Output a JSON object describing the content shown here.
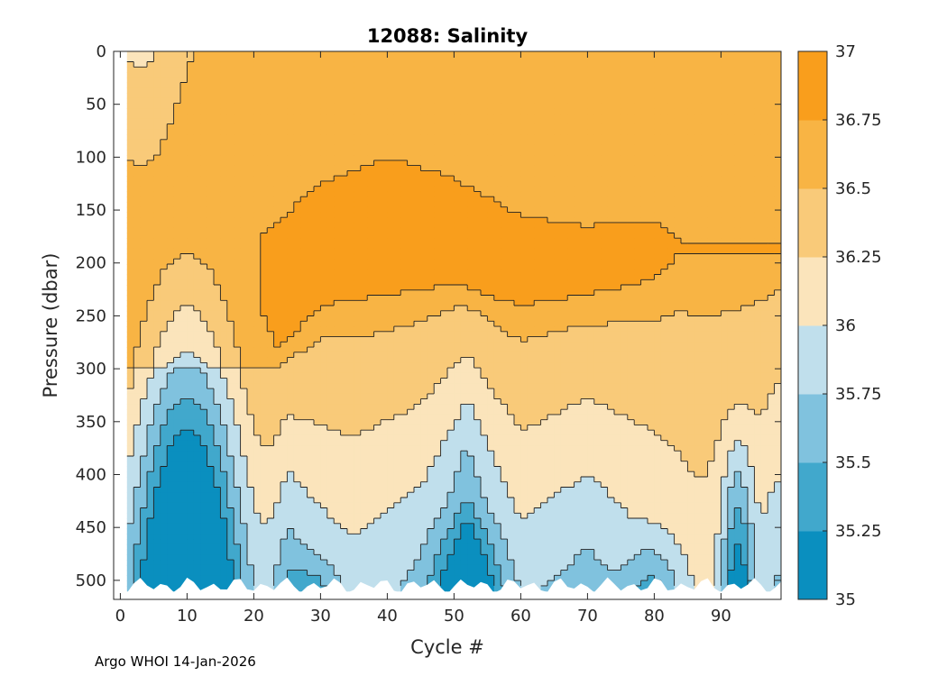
{
  "chart_data": {
    "type": "contourf",
    "title": "12088:  Salinity",
    "xlabel": "Cycle #",
    "ylabel": "Pressure (dbar)",
    "xlim": [
      -1,
      99
    ],
    "ylim": [
      0,
      518
    ],
    "y_reversed": true,
    "x_ticks": [
      0,
      10,
      20,
      30,
      40,
      50,
      60,
      70,
      80,
      90
    ],
    "y_ticks": [
      0,
      50,
      100,
      150,
      200,
      250,
      300,
      350,
      400,
      450,
      500
    ],
    "colorbar": {
      "levels": [
        35,
        35.25,
        35.5,
        35.75,
        36,
        36.25,
        36.5,
        36.75,
        37
      ],
      "tick_labels": [
        "35",
        "35.25",
        "35.5",
        "35.75",
        "36",
        "36.25",
        "36.5",
        "36.75",
        "37"
      ],
      "colors": [
        "#0a8fbf",
        "#41a8cc",
        "#80c2de",
        "#c0dfec",
        "#fbe4bb",
        "#f9ca79",
        "#f8b444",
        "#f99e1c"
      ]
    },
    "series": [
      {
        "name": "core_36.75_top",
        "x": [
          21,
          30,
          40,
          50,
          60,
          70,
          80,
          84
        ],
        "values": [
          175,
          125,
          100,
          120,
          155,
          165,
          160,
          180
        ]
      },
      {
        "name": "core_36.75_bottom",
        "x": [
          21,
          30,
          40,
          50,
          60,
          70,
          80,
          84
        ],
        "values": [
          300,
          240,
          230,
          220,
          240,
          230,
          215,
          190
        ]
      },
      {
        "name": "iso_36.25_depth",
        "x": [
          20,
          25,
          35,
          45,
          52,
          60,
          70,
          80,
          87,
          95,
          98
        ],
        "values": [
          520,
          380,
          420,
          380,
          310,
          410,
          370,
          420,
          500,
          440,
          370
        ]
      },
      {
        "name": "fresh_core_35.0",
        "x": [
          1,
          5,
          10,
          14,
          17
        ],
        "values": [
          460,
          480,
          320,
          430,
          505
        ]
      }
    ],
    "footer": "Argo WHOI 14-Jan-2026"
  }
}
